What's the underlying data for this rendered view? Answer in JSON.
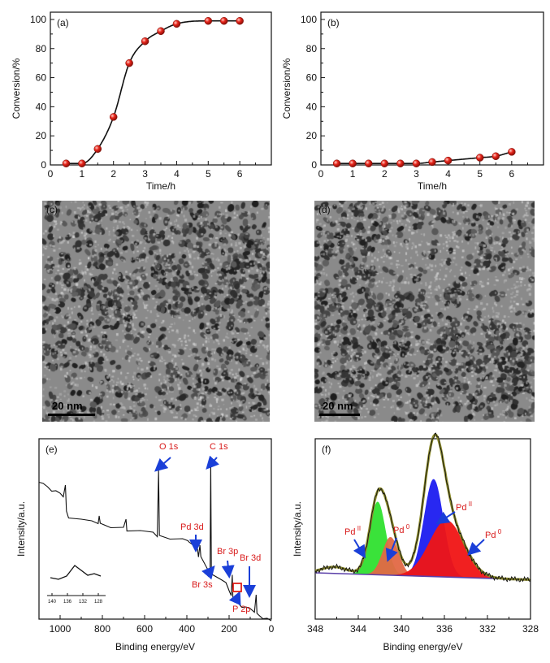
{
  "chart_data": [
    {
      "panel": "(a)",
      "type": "scatter",
      "xlabel": "Time/h",
      "ylabel": "Conversion/%",
      "xlim": [
        0,
        7
      ],
      "ylim": [
        0,
        105
      ],
      "xticks": [
        "0",
        "1",
        "2",
        "3",
        "4",
        "5",
        "6"
      ],
      "yticks": [
        "0",
        "20",
        "40",
        "60",
        "80",
        "100"
      ],
      "x": [
        0.5,
        1.0,
        1.5,
        2.0,
        2.5,
        3.0,
        3.5,
        4.0,
        5.0,
        5.5,
        6.0
      ],
      "y": [
        1,
        1,
        11,
        33,
        70,
        85,
        92,
        97,
        99,
        99,
        99
      ],
      "fit_line": true,
      "marker_color": "#e8261c"
    },
    {
      "panel": "(b)",
      "type": "scatter",
      "xlabel": "Time/h",
      "ylabel": "Conversion/%",
      "xlim": [
        0,
        7
      ],
      "ylim": [
        0,
        105
      ],
      "xticks": [
        "0",
        "1",
        "2",
        "3",
        "4",
        "5",
        "6"
      ],
      "yticks": [
        "0",
        "20",
        "40",
        "60",
        "80",
        "100"
      ],
      "x": [
        0.5,
        1.0,
        1.5,
        2.0,
        2.5,
        3.0,
        3.5,
        4.0,
        5.0,
        5.5,
        6.0
      ],
      "y": [
        1,
        1,
        1,
        1,
        1,
        1,
        2,
        3,
        5,
        6,
        9
      ],
      "fit_line": true,
      "marker_color": "#e8261c"
    },
    {
      "panel": "(e)",
      "type": "line",
      "xlabel": "Binding energy/eV",
      "ylabel": "Intensity/a.u.",
      "xlim": [
        1100,
        0
      ],
      "xticks": [
        "1000",
        "800",
        "600",
        "400",
        "200",
        "0"
      ],
      "annotations": [
        "O 1s",
        "C 1s",
        "Pd 3d",
        "Br 3p",
        "Br 3s",
        "Br 3d",
        "P 2p"
      ],
      "inset_xticks": [
        "140",
        "136",
        "132",
        "128"
      ]
    },
    {
      "panel": "(f)",
      "type": "area",
      "xlabel": "Binding energy/eV",
      "ylabel": "Intensity/a.u.",
      "xlim": [
        348,
        328
      ],
      "xticks": [
        "348",
        "344",
        "340",
        "336",
        "332",
        "328"
      ],
      "peak_labels": [
        {
          "base": "Pd",
          "sup": "II"
        },
        {
          "base": "Pd",
          "sup": "0"
        },
        {
          "base": "Pd",
          "sup": "II"
        },
        {
          "base": "Pd",
          "sup": "0"
        }
      ],
      "colors": {
        "pd2_3d5": "#2fe02f",
        "pd0_3d5": "#e26845",
        "pd2_3d3": "#1c1cf0",
        "pd0_3d3": "#f01414",
        "envelope": "#8b8a2a",
        "baseline": "#5a3fa8"
      }
    }
  ],
  "tem": {
    "c": {
      "label": "(c)",
      "scale": "20 nm"
    },
    "d": {
      "label": "(d)",
      "scale": "20 nm"
    }
  }
}
